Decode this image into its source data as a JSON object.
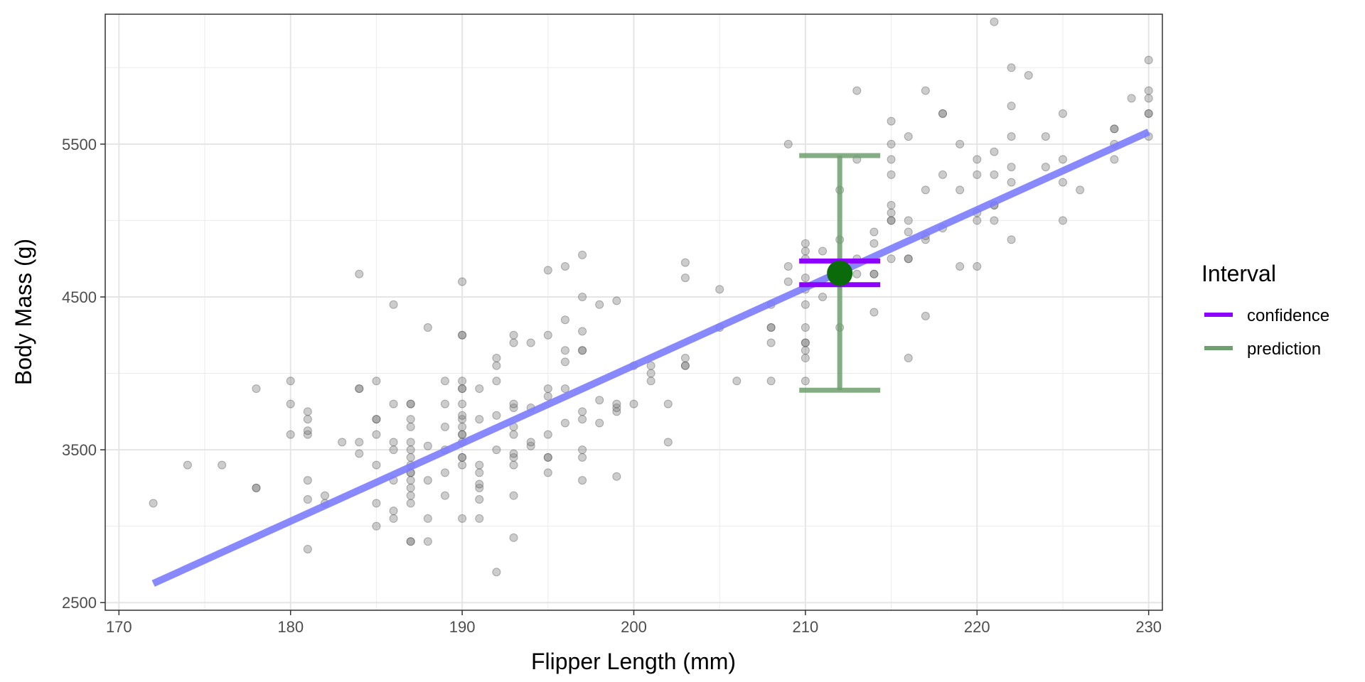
{
  "chart_data": {
    "type": "scatter",
    "xlabel": "Flipper Length (mm)",
    "ylabel": "Body Mass (g)",
    "xlim": [
      169.2,
      230.8
    ],
    "ylim": [
      2450,
      6350
    ],
    "x_ticks": [
      170,
      180,
      190,
      200,
      210,
      220,
      230
    ],
    "y_ticks": [
      2500,
      3500,
      4500,
      5500
    ],
    "grid": true,
    "legend": {
      "title": "Interval",
      "placement": "right",
      "entries": [
        {
          "label": "confidence",
          "color": "#8b00ff"
        },
        {
          "label": "prediction",
          "color": "#6e9f6e"
        }
      ]
    },
    "points_color": "#808080",
    "points": [
      [
        172,
        3150
      ],
      [
        174,
        3400
      ],
      [
        176,
        3400
      ],
      [
        178,
        3250
      ],
      [
        178,
        3250
      ],
      [
        178,
        3900
      ],
      [
        180,
        3600
      ],
      [
        180,
        3800
      ],
      [
        180,
        3950
      ],
      [
        181,
        2850
      ],
      [
        181,
        3300
      ],
      [
        181,
        3175
      ],
      [
        181,
        3600
      ],
      [
        181,
        3625
      ],
      [
        181,
        3700
      ],
      [
        181,
        3750
      ],
      [
        182,
        3150
      ],
      [
        182,
        3200
      ],
      [
        183,
        3550
      ],
      [
        184,
        3475
      ],
      [
        184,
        3550
      ],
      [
        184,
        3900
      ],
      [
        184,
        3900
      ],
      [
        184,
        4650
      ],
      [
        185,
        3000
      ],
      [
        185,
        3150
      ],
      [
        185,
        3400
      ],
      [
        185,
        3600
      ],
      [
        185,
        3700
      ],
      [
        185,
        3700
      ],
      [
        185,
        3950
      ],
      [
        186,
        3050
      ],
      [
        186,
        3100
      ],
      [
        186,
        3300
      ],
      [
        186,
        3500
      ],
      [
        186,
        3550
      ],
      [
        186,
        3800
      ],
      [
        186,
        4450
      ],
      [
        187,
        2900
      ],
      [
        187,
        2900
      ],
      [
        187,
        3150
      ],
      [
        187,
        3200
      ],
      [
        187,
        3250
      ],
      [
        187,
        3300
      ],
      [
        187,
        3350
      ],
      [
        187,
        3350
      ],
      [
        187,
        3400
      ],
      [
        187,
        3450
      ],
      [
        187,
        3500
      ],
      [
        187,
        3550
      ],
      [
        187,
        3650
      ],
      [
        187,
        3700
      ],
      [
        187,
        3800
      ],
      [
        187,
        3800
      ],
      [
        188,
        2900
      ],
      [
        188,
        3050
      ],
      [
        188,
        3300
      ],
      [
        188,
        3525
      ],
      [
        188,
        4300
      ],
      [
        189,
        3200
      ],
      [
        189,
        3350
      ],
      [
        189,
        3500
      ],
      [
        189,
        3650
      ],
      [
        189,
        3800
      ],
      [
        189,
        3950
      ],
      [
        190,
        3050
      ],
      [
        190,
        3400
      ],
      [
        190,
        3450
      ],
      [
        190,
        3450
      ],
      [
        190,
        3550
      ],
      [
        190,
        3600
      ],
      [
        190,
        3600
      ],
      [
        190,
        3650
      ],
      [
        190,
        3700
      ],
      [
        190,
        3725
      ],
      [
        190,
        3800
      ],
      [
        190,
        3900
      ],
      [
        190,
        3900
      ],
      [
        190,
        3950
      ],
      [
        190,
        4250
      ],
      [
        190,
        4250
      ],
      [
        190,
        4600
      ],
      [
        191,
        3050
      ],
      [
        191,
        3175
      ],
      [
        191,
        3250
      ],
      [
        191,
        3275
      ],
      [
        191,
        3350
      ],
      [
        191,
        3400
      ],
      [
        191,
        3700
      ],
      [
        191,
        3900
      ],
      [
        192,
        2700
      ],
      [
        192,
        3500
      ],
      [
        192,
        3725
      ],
      [
        192,
        3950
      ],
      [
        192,
        4050
      ],
      [
        192,
        4100
      ],
      [
        193,
        2925
      ],
      [
        193,
        3200
      ],
      [
        193,
        3400
      ],
      [
        193,
        3450
      ],
      [
        193,
        3475
      ],
      [
        193,
        3600
      ],
      [
        193,
        3650
      ],
      [
        193,
        3775
      ],
      [
        193,
        3800
      ],
      [
        193,
        4200
      ],
      [
        193,
        4250
      ],
      [
        194,
        3525
      ],
      [
        194,
        3550
      ],
      [
        194,
        3775
      ],
      [
        194,
        4200
      ],
      [
        195,
        3350
      ],
      [
        195,
        3450
      ],
      [
        195,
        3450
      ],
      [
        195,
        3600
      ],
      [
        195,
        3850
      ],
      [
        195,
        3900
      ],
      [
        195,
        4250
      ],
      [
        195,
        4675
      ],
      [
        196,
        3675
      ],
      [
        196,
        3900
      ],
      [
        196,
        4075
      ],
      [
        196,
        4150
      ],
      [
        196,
        4350
      ],
      [
        196,
        4700
      ],
      [
        197,
        3300
      ],
      [
        197,
        3450
      ],
      [
        197,
        3500
      ],
      [
        197,
        3700
      ],
      [
        197,
        3750
      ],
      [
        197,
        4150
      ],
      [
        197,
        4150
      ],
      [
        197,
        4275
      ],
      [
        197,
        4500
      ],
      [
        197,
        4775
      ],
      [
        198,
        3675
      ],
      [
        198,
        3825
      ],
      [
        198,
        4450
      ],
      [
        199,
        3325
      ],
      [
        199,
        3750
      ],
      [
        199,
        3775
      ],
      [
        199,
        3800
      ],
      [
        199,
        4475
      ],
      [
        200,
        3800
      ],
      [
        200,
        4050
      ],
      [
        201,
        3950
      ],
      [
        201,
        4000
      ],
      [
        201,
        4050
      ],
      [
        202,
        3550
      ],
      [
        202,
        3800
      ],
      [
        203,
        4050
      ],
      [
        203,
        4050
      ],
      [
        203,
        4100
      ],
      [
        203,
        4625
      ],
      [
        203,
        4725
      ],
      [
        205,
        4300
      ],
      [
        205,
        4550
      ],
      [
        206,
        3950
      ],
      [
        208,
        3950
      ],
      [
        208,
        4200
      ],
      [
        208,
        4300
      ],
      [
        208,
        4300
      ],
      [
        208,
        4450
      ],
      [
        209,
        4600
      ],
      [
        209,
        4700
      ],
      [
        209,
        5500
      ],
      [
        210,
        3950
      ],
      [
        210,
        4100
      ],
      [
        210,
        4150
      ],
      [
        210,
        4200
      ],
      [
        210,
        4200
      ],
      [
        210,
        4300
      ],
      [
        210,
        4450
      ],
      [
        210,
        4550
      ],
      [
        210,
        4625
      ],
      [
        210,
        4750
      ],
      [
        210,
        4800
      ],
      [
        210,
        4850
      ],
      [
        211,
        4500
      ],
      [
        211,
        4800
      ],
      [
        212,
        4300
      ],
      [
        212,
        4650
      ],
      [
        212,
        4875
      ],
      [
        212,
        5200
      ],
      [
        213,
        4650
      ],
      [
        213,
        4750
      ],
      [
        213,
        5400
      ],
      [
        213,
        5850
      ],
      [
        214,
        4400
      ],
      [
        214,
        4650
      ],
      [
        214,
        4650
      ],
      [
        214,
        4850
      ],
      [
        214,
        4925
      ],
      [
        215,
        4750
      ],
      [
        215,
        5000
      ],
      [
        215,
        5000
      ],
      [
        215,
        5050
      ],
      [
        215,
        5100
      ],
      [
        215,
        5300
      ],
      [
        215,
        5400
      ],
      [
        215,
        5500
      ],
      [
        215,
        5650
      ],
      [
        216,
        4100
      ],
      [
        216,
        4750
      ],
      [
        216,
        4750
      ],
      [
        216,
        4925
      ],
      [
        216,
        5000
      ],
      [
        216,
        5550
      ],
      [
        217,
        4375
      ],
      [
        217,
        4875
      ],
      [
        217,
        4900
      ],
      [
        217,
        5200
      ],
      [
        217,
        5850
      ],
      [
        218,
        4950
      ],
      [
        218,
        5300
      ],
      [
        218,
        5700
      ],
      [
        218,
        5700
      ],
      [
        219,
        4700
      ],
      [
        219,
        5200
      ],
      [
        219,
        5500
      ],
      [
        220,
        4700
      ],
      [
        220,
        5000
      ],
      [
        220,
        5050
      ],
      [
        220,
        5300
      ],
      [
        220,
        5400
      ],
      [
        221,
        5000
      ],
      [
        221,
        5100
      ],
      [
        221,
        5100
      ],
      [
        221,
        5300
      ],
      [
        221,
        5450
      ],
      [
        221,
        6300
      ],
      [
        222,
        4875
      ],
      [
        222,
        5250
      ],
      [
        222,
        5350
      ],
      [
        222,
        5550
      ],
      [
        222,
        5750
      ],
      [
        222,
        6000
      ],
      [
        223,
        5950
      ],
      [
        224,
        5350
      ],
      [
        224,
        5550
      ],
      [
        225,
        5000
      ],
      [
        225,
        5250
      ],
      [
        225,
        5400
      ],
      [
        225,
        5700
      ],
      [
        226,
        5200
      ],
      [
        228,
        5400
      ],
      [
        228,
        5500
      ],
      [
        228,
        5600
      ],
      [
        228,
        5600
      ],
      [
        229,
        5800
      ],
      [
        230,
        5550
      ],
      [
        230,
        5700
      ],
      [
        230,
        5700
      ],
      [
        230,
        5800
      ],
      [
        230,
        5850
      ],
      [
        230,
        6050
      ]
    ],
    "fit_line": {
      "x": [
        172,
        230
      ],
      "y": [
        2625,
        5580
      ],
      "color": "#7b7bff"
    },
    "estimate": {
      "x": 212,
      "y": 4655,
      "color": "#0b6b0b"
    },
    "confidence_interval": {
      "lower": 4580,
      "upper": 4735,
      "color": "#8b00ff"
    },
    "prediction_interval": {
      "lower": 3890,
      "upper": 5425,
      "color": "#6e9f6e"
    }
  }
}
